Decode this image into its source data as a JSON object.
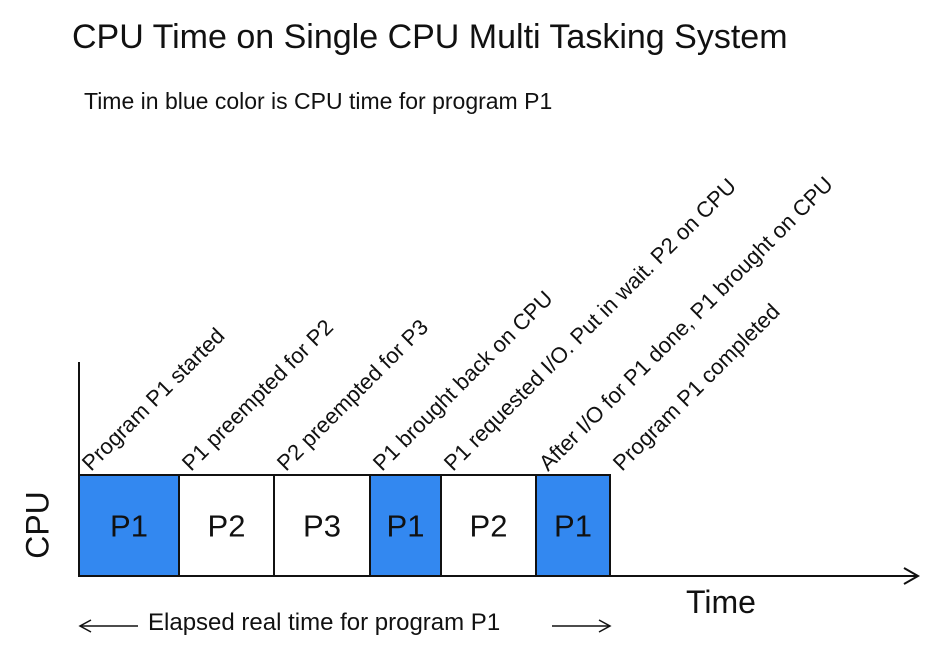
{
  "title": "CPU Time on Single CPU Multi Tasking System",
  "subtitle": "Time in blue color is CPU time for program P1",
  "axes": {
    "y_label": "CPU",
    "x_label": "Time"
  },
  "elapsed_label": "Elapsed real time for program P1",
  "colors": {
    "p1_block": "#3388f0",
    "other_block": "#ffffff",
    "stroke": "#111111"
  },
  "blocks": [
    {
      "label": "P1",
      "highlighted": true
    },
    {
      "label": "P2",
      "highlighted": false
    },
    {
      "label": "P3",
      "highlighted": false
    },
    {
      "label": "P1",
      "highlighted": true
    },
    {
      "label": "P2",
      "highlighted": false
    },
    {
      "label": "P1",
      "highlighted": true
    }
  ],
  "events": [
    "Program P1 started",
    "P1 preempted for P2",
    "P2 preempted for P3",
    "P1 brought back on CPU",
    "P1 requested I/O. Put in wait. P2 on CPU",
    "After I/O for P1 done, P1 brought on CPU",
    "Program P1 completed"
  ]
}
